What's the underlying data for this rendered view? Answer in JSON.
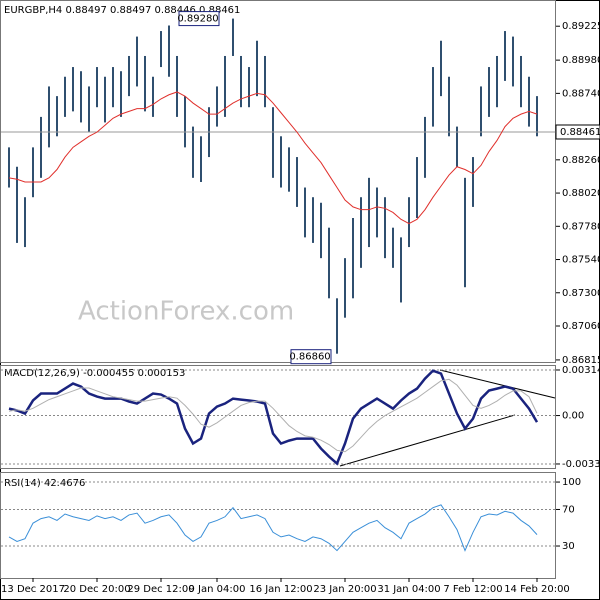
{
  "chart_data": [
    {
      "type": "hilo",
      "title": "EURGBP,H4  0.88497 0.88497 0.88446 0.88461",
      "watermark": "ActionForex.com",
      "color": "#2f4f6f",
      "high": [
        0.8835,
        0.8821,
        0.8799,
        0.8835,
        0.8857,
        0.8879,
        0.8872,
        0.8886,
        0.8893,
        0.889,
        0.8879,
        0.8893,
        0.8886,
        0.8893,
        0.889,
        0.8901,
        0.8915,
        0.8901,
        0.8886,
        0.8919,
        0.8923,
        0.8901,
        0.8872,
        0.885,
        0.8843,
        0.8864,
        0.8879,
        0.8901,
        0.8928,
        0.8901,
        0.8893,
        0.8912,
        0.8901,
        0.8864,
        0.8843,
        0.8835,
        0.8828,
        0.8806,
        0.8799,
        0.8795,
        0.8777,
        0.8726,
        0.8755,
        0.8784,
        0.8799,
        0.8813,
        0.8806,
        0.8799,
        0.8777,
        0.877,
        0.8799,
        0.8828,
        0.8857,
        0.8893,
        0.8912,
        0.8886,
        0.885,
        0.8813,
        0.8828,
        0.8879,
        0.8893,
        0.8901,
        0.8919,
        0.8915,
        0.8901,
        0.8886,
        0.8872
      ],
      "low": [
        0.8806,
        0.8766,
        0.8763,
        0.8799,
        0.8813,
        0.8835,
        0.8843,
        0.8857,
        0.8861,
        0.8853,
        0.8846,
        0.8864,
        0.8853,
        0.8864,
        0.8857,
        0.8872,
        0.8879,
        0.8861,
        0.8857,
        0.8893,
        0.8886,
        0.8857,
        0.8835,
        0.8813,
        0.881,
        0.8828,
        0.885,
        0.8857,
        0.8901,
        0.8864,
        0.8864,
        0.8872,
        0.8864,
        0.8813,
        0.8806,
        0.8803,
        0.8792,
        0.877,
        0.8766,
        0.8755,
        0.8726,
        0.8686,
        0.8712,
        0.8726,
        0.8748,
        0.8763,
        0.877,
        0.8755,
        0.8748,
        0.8723,
        0.8763,
        0.8784,
        0.8813,
        0.885,
        0.8872,
        0.8843,
        0.8821,
        0.8734,
        0.8792,
        0.8843,
        0.8857,
        0.8864,
        0.8883,
        0.8879,
        0.8864,
        0.885,
        0.8843
      ],
      "series": [
        {
          "color": "#e0302c",
          "values": [
            0.8813,
            0.8812,
            0.881,
            0.881,
            0.881,
            0.8813,
            0.8819,
            0.8828,
            0.8835,
            0.8839,
            0.8843,
            0.8846,
            0.8851,
            0.8856,
            0.8859,
            0.8861,
            0.8863,
            0.8863,
            0.8866,
            0.887,
            0.8873,
            0.8875,
            0.8872,
            0.8867,
            0.8863,
            0.8859,
            0.8859,
            0.8863,
            0.8867,
            0.887,
            0.8872,
            0.8874,
            0.8873,
            0.8867,
            0.886,
            0.8853,
            0.8846,
            0.8838,
            0.8831,
            0.8824,
            0.8815,
            0.8806,
            0.8797,
            0.8792,
            0.879,
            0.879,
            0.8792,
            0.8791,
            0.8788,
            0.8783,
            0.878,
            0.8783,
            0.879,
            0.8799,
            0.8807,
            0.8815,
            0.8821,
            0.8819,
            0.8816,
            0.8822,
            0.8832,
            0.884,
            0.885,
            0.8856,
            0.8859,
            0.8861,
            0.8859
          ]
        }
      ],
      "last_price": 0.88461,
      "annotations": [
        {
          "value": 0.8928,
          "label": "0.89280"
        },
        {
          "value": 0.8686,
          "label": "0.86860"
        }
      ],
      "ylim": [
        0.868,
        0.89407
      ],
      "yticks": [
        0.89225,
        {
          "value": 0.8898,
          "label": "0.88980"
        },
        {
          "value": 0.8874,
          "label": "0.88740"
        },
        {
          "value": 0.8826,
          "label": "0.88260"
        },
        {
          "value": 0.8802,
          "label": "0.88020"
        },
        {
          "value": 0.8778,
          "label": "0.87780"
        },
        {
          "value": 0.8754,
          "label": "0.87540"
        },
        {
          "value": 0.873,
          "label": "0.87300"
        },
        {
          "value": 0.8706,
          "label": "0.87060"
        },
        0.86815
      ]
    },
    {
      "type": "line",
      "title": "MACD(12,26,9) -0.000455 0.000153",
      "grid": true,
      "series": [
        {
          "color": "#1a237e",
          "width": 2.5,
          "values": [
            0.00048,
            0.00035,
            0.00014,
            0.00104,
            0.00152,
            0.00152,
            0.00152,
            0.00186,
            0.00221,
            0.002,
            0.00152,
            0.00131,
            0.00117,
            0.00117,
            0.00117,
            0.00097,
            0.00083,
            0.00117,
            0.00152,
            0.00145,
            0.00117,
            0.00083,
            -0.0009,
            -0.00193,
            -0.00159,
            0.00014,
            0.00062,
            0.00083,
            0.00117,
            0.0011,
            0.00104,
            0.00097,
            0.00083,
            -0.00124,
            -0.00193,
            -0.00173,
            -0.00159,
            -0.00159,
            -0.00159,
            -0.00228,
            -0.00283,
            -0.00331,
            -0.00193,
            -0.00021,
            0.00048,
            0.00083,
            0.00117,
            0.00083,
            0.00048,
            0.00104,
            0.00152,
            0.00186,
            0.00255,
            0.0031,
            0.0029,
            0.00152,
            0.00014,
            -0.0009,
            -0.00021,
            0.00117,
            0.00173,
            0.00186,
            0.002,
            0.00186,
            0.00117,
            0.00048,
            -0.000455
          ]
        },
        {
          "color": "#b0b0b0",
          "width": 1,
          "values": [
            0.0003,
            0.0004,
            0.0003,
            0.0005,
            0.0008,
            0.0011,
            0.0013,
            0.0015,
            0.0017,
            0.0019,
            0.0019,
            0.0017,
            0.0015,
            0.0013,
            0.0012,
            0.0011,
            0.001,
            0.001,
            0.0011,
            0.0012,
            0.0013,
            0.0012,
            0.0007,
            0.0001,
            -0.0006,
            -0.0008,
            -0.0005,
            -0.0001,
            0.0003,
            0.0007,
            0.0009,
            0.001,
            0.001,
            0.0005,
            -0.0001,
            -0.0007,
            -0.0011,
            -0.0014,
            -0.0015,
            -0.0017,
            -0.002,
            -0.0024,
            -0.0025,
            -0.0021,
            -0.0015,
            -0.0009,
            -0.0004,
            0,
            0.0003,
            0.0006,
            0.0009,
            0.0012,
            0.0016,
            0.002,
            0.0024,
            0.0025,
            0.0021,
            0.0014,
            0.0007,
            0.0005,
            0.0007,
            0.001,
            0.0014,
            0.0017,
            0.0017,
            0.0013,
            0.000153
          ]
        }
      ],
      "ylim": [
        -0.00362,
        0.00349
      ],
      "yticks": [
        0.003146,
        {
          "value": 0,
          "label": "0.00"
        },
        -0.003342
      ]
    },
    {
      "type": "line",
      "title": "RSI(14) 42.4676",
      "grid": true,
      "categories": [
        null,
        null,
        null,
        "13 Dec 2017",
        null,
        null,
        null,
        null,
        null,
        null,
        null,
        "20 Dec 20:00",
        null,
        null,
        null,
        null,
        null,
        null,
        null,
        "29 Dec 12:00",
        null,
        null,
        null,
        null,
        null,
        null,
        "9 Jan 04:00",
        null,
        null,
        null,
        null,
        null,
        null,
        null,
        "16 Jan 12:00",
        null,
        null,
        null,
        null,
        null,
        null,
        null,
        "23 Jan 20:00",
        null,
        null,
        null,
        null,
        null,
        null,
        null,
        "31 Jan 04:00",
        null,
        null,
        null,
        null,
        null,
        null,
        null,
        "7 Feb 12:00",
        null,
        null,
        null,
        null,
        null,
        null,
        null,
        "14 Feb 20:00"
      ],
      "series": [
        {
          "color": "#3a8fd8",
          "width": 1,
          "values": [
            40,
            35,
            38,
            55,
            60,
            62,
            58,
            65,
            62,
            60,
            58,
            63,
            60,
            62,
            58,
            64,
            66,
            55,
            58,
            62,
            64,
            55,
            42,
            35,
            40,
            55,
            58,
            62,
            72,
            60,
            62,
            64,
            60,
            45,
            40,
            42,
            38,
            35,
            40,
            38,
            33,
            25,
            35,
            45,
            50,
            55,
            58,
            50,
            45,
            38,
            55,
            60,
            65,
            72,
            75,
            62,
            48,
            25,
            45,
            62,
            65,
            64,
            68,
            66,
            58,
            52,
            42.4676
          ]
        }
      ],
      "ylim": [
        -5,
        111
      ],
      "yticks": [
        100,
        70,
        30
      ]
    }
  ]
}
